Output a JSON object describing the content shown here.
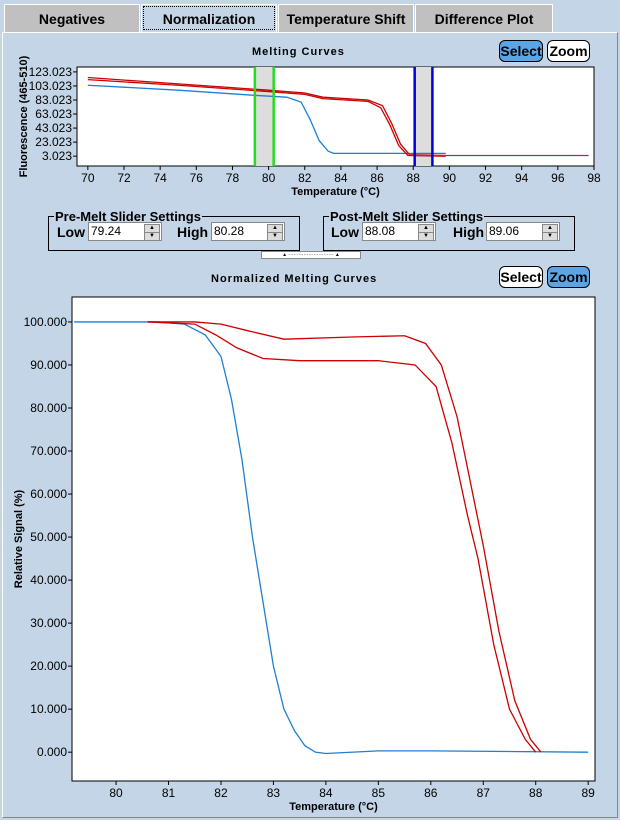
{
  "tabs": [
    {
      "label": "Negatives"
    },
    {
      "label": "Normalization",
      "active": true
    },
    {
      "label": "Temperature Shift"
    },
    {
      "label": "Difference Plot"
    }
  ],
  "top_chart": {
    "title": "Melting Curves",
    "select_label": "Select",
    "zoom_label": "Zoom",
    "mode": "Select"
  },
  "pre_melt": {
    "legend": "Pre-Melt Slider Settings",
    "low_label": "Low",
    "low_value": "79.24",
    "high_label": "High",
    "high_value": "80.28"
  },
  "post_melt": {
    "legend": "Post-Melt Slider Settings",
    "low_label": "Low",
    "low_value": "88.08",
    "high_label": "High",
    "high_value": "89.06"
  },
  "bottom_chart": {
    "title": "Normalized Melting Curves",
    "select_label": "Select",
    "zoom_label": "Zoom",
    "mode": "Zoom"
  },
  "colors": {
    "red": "#cc0000",
    "blue": "#1f7fd0",
    "green": "#22dd22",
    "cursor_blue": "#0000dd",
    "selected_button": "#5ba5e5"
  },
  "chart_data": [
    {
      "type": "line",
      "title": "Melting Curves",
      "xlabel": "Temperature (°C)",
      "ylabel": "Fluorescence (465-510)",
      "xlim": [
        69.4,
        98
      ],
      "ylim": [
        -11,
        130
      ],
      "xticks": [
        70,
        72,
        74,
        76,
        78,
        80,
        82,
        84,
        86,
        88,
        90,
        92,
        94,
        96,
        98
      ],
      "yticks": [
        "3.023",
        "23.023",
        "43.023",
        "63.023",
        "83.023",
        "103.023",
        "123.023"
      ],
      "regions": [
        {
          "from": 79.24,
          "to": 80.28,
          "color": "#22dd22"
        },
        {
          "from": 88.08,
          "to": 89.06,
          "color": "#0000dd"
        }
      ],
      "series": [
        {
          "color": "#1f7fd0",
          "x": [
            70,
            75,
            79,
            81,
            81.8,
            82.3,
            82.8,
            83.3,
            83.6,
            89.8
          ],
          "y": [
            104,
            97,
            90,
            87,
            80,
            55,
            25,
            10,
            7,
            7
          ]
        },
        {
          "color": "#cc0000",
          "x": [
            70,
            75,
            80,
            82,
            83,
            85.5,
            86.3,
            86.8,
            87.3,
            87.8,
            89.8
          ],
          "y": [
            115,
            106,
            97,
            93,
            87,
            83,
            75,
            50,
            20,
            5,
            4
          ]
        },
        {
          "color": "#cc0000",
          "x": [
            70,
            75,
            80,
            82,
            83,
            85.5,
            86.2,
            86.7,
            87.2,
            87.7,
            89.8
          ],
          "y": [
            112,
            104,
            95,
            91,
            85,
            81,
            72,
            48,
            18,
            4,
            3
          ]
        },
        {
          "color": "#7a3a8a",
          "x": [
            88,
            97.7
          ],
          "y": [
            4,
            4
          ]
        }
      ]
    },
    {
      "type": "line",
      "title": "Normalized Melting Curves",
      "xlabel": "Temperature (°C)",
      "ylabel": "Relative Signal (%)",
      "xlim": [
        79.16,
        89.13
      ],
      "ylim": [
        -6.7,
        105.8
      ],
      "xticks": [
        80,
        81,
        82,
        83,
        84,
        85,
        86,
        87,
        88,
        89
      ],
      "yticks": [
        "0.000",
        "10.000",
        "20.000",
        "30.000",
        "40.000",
        "50.000",
        "60.000",
        "70.000",
        "80.000",
        "90.000",
        "100.000"
      ],
      "series": [
        {
          "color": "#1f7fd0",
          "x": [
            79.2,
            80.8,
            81.3,
            81.7,
            82,
            82.2,
            82.4,
            82.6,
            82.8,
            83,
            83.2,
            83.4,
            83.6,
            83.8,
            84,
            85,
            86,
            89
          ],
          "y": [
            100,
            100,
            99.5,
            97,
            92,
            82,
            68,
            50,
            35,
            20,
            10,
            5,
            1.5,
            0,
            -0.3,
            0.3,
            0.3,
            0
          ]
        },
        {
          "color": "#cc0000",
          "x": [
            80.6,
            81.5,
            82,
            82.5,
            83.2,
            84.5,
            85.5,
            85.9,
            86.2,
            86.5,
            86.8,
            87,
            87.3,
            87.6,
            87.9,
            88.1
          ],
          "y": [
            100,
            100,
            99.5,
            98,
            96,
            96.5,
            96.8,
            95,
            90,
            78,
            60,
            48,
            28,
            12,
            3,
            0
          ]
        },
        {
          "color": "#cc0000",
          "x": [
            80.6,
            81.5,
            81.9,
            82.3,
            82.8,
            83.5,
            85,
            85.7,
            86.1,
            86.4,
            86.7,
            86.9,
            87.2,
            87.5,
            87.8,
            88
          ],
          "y": [
            100,
            99.5,
            97,
            94,
            91.5,
            91,
            91,
            90,
            85,
            72,
            55,
            45,
            25,
            10,
            3,
            0
          ]
        }
      ]
    }
  ]
}
